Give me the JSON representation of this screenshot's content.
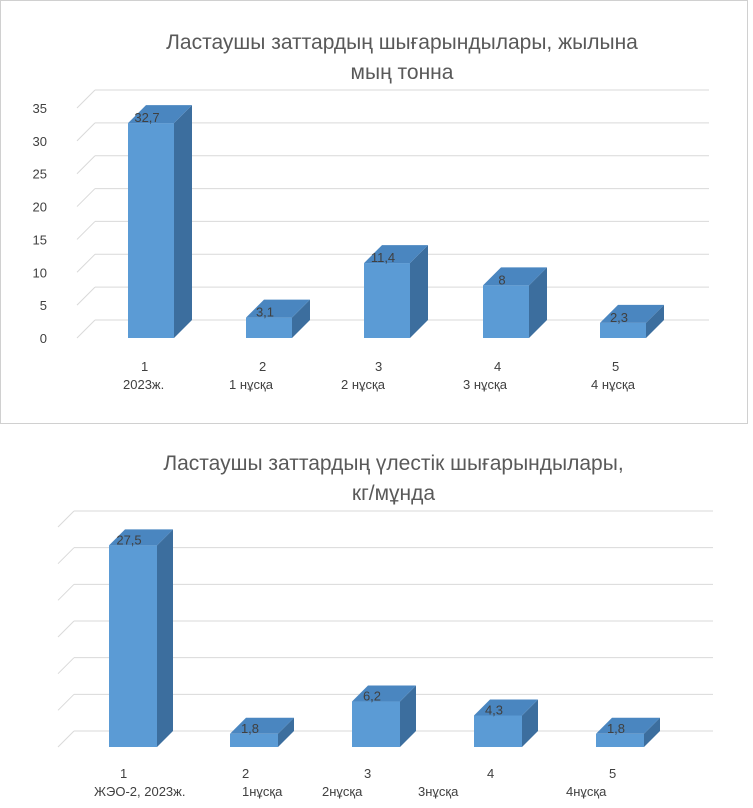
{
  "chart_data": [
    {
      "type": "bar",
      "title_lines": [
        "Ластаушы заттардың шығарындылары, жылына",
        "мың тонна"
      ],
      "categories": [
        [
          "1",
          "2023ж."
        ],
        [
          "2",
          "1 нұсқа"
        ],
        [
          "3",
          "2 нұсқа"
        ],
        [
          "4",
          "3 нұсқа"
        ],
        [
          "5",
          "4 нұсқа"
        ]
      ],
      "values": [
        32.7,
        3.1,
        11.4,
        8,
        2.3
      ],
      "data_labels": [
        "32,7",
        "3,1",
        "11,4",
        "8",
        "2,3"
      ],
      "yticks": [
        "0",
        "5",
        "10",
        "15",
        "20",
        "25",
        "30",
        "35"
      ],
      "ylim": [
        0,
        35
      ],
      "grid": true,
      "bar_color": "#5b9bd5",
      "bar_side_color": "#3c6e9e",
      "bar_top_color": "#4a86c0"
    },
    {
      "type": "bar",
      "title_lines": [
        "Ластаушы заттардың үлестік шығарындылары,",
        "кг/мұнда"
      ],
      "categories": [
        [
          "1",
          "ЖЭО-2, 2023ж."
        ],
        [
          "2",
          "1нұсқа"
        ],
        [
          "3",
          "2нұсқа"
        ],
        [
          "4",
          "3нұсқа"
        ],
        [
          "5",
          "4нұсқа"
        ]
      ],
      "values": [
        27.5,
        1.8,
        6.2,
        4.3,
        1.8
      ],
      "data_labels": [
        "27,5",
        "1,8",
        "6,2",
        "4,3",
        "1,8"
      ],
      "yticks": [],
      "ylim": [
        0,
        30
      ],
      "grid": true,
      "bar_color": "#5b9bd5",
      "bar_side_color": "#3c6e9e",
      "bar_top_color": "#4a86c0"
    }
  ]
}
